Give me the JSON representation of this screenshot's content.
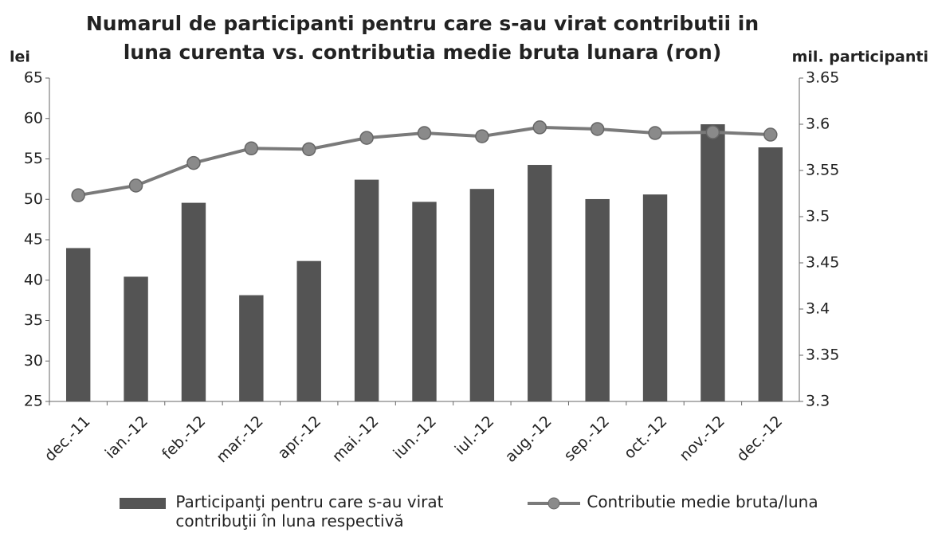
{
  "chart_data": {
    "type": "bar_line",
    "title": "Numarul de participanti pentru care s-au virat contributii in luna curenta vs. contributia medie bruta lunara (ron)",
    "ylabel": "lei",
    "y2label": "mil. participanti",
    "categories": [
      "dec.-11",
      "ian.-12",
      "feb.-12",
      "mar.-12",
      "apr.-12",
      "mai.-12",
      "iun.-12",
      "iul.-12",
      "aug.-12",
      "sep.-12",
      "oct.-12",
      "nov.-12",
      "dec.-12"
    ],
    "series": [
      {
        "name": "Participanţi pentru care s-au virat contribuţii în luna respectivă",
        "type": "bar",
        "axis": "y2",
        "color": "#545454",
        "values": [
          3.466,
          3.435,
          3.515,
          3.415,
          3.452,
          3.54,
          3.516,
          3.53,
          3.556,
          3.519,
          3.524,
          3.6,
          3.575
        ]
      },
      {
        "name": "Contributie medie bruta/luna",
        "type": "line",
        "axis": "y",
        "color": "#7a7a7a",
        "values": [
          50.5,
          51.7,
          54.5,
          56.3,
          56.2,
          57.6,
          58.2,
          57.8,
          58.9,
          58.7,
          58.2,
          58.3,
          58.0
        ]
      }
    ],
    "ylim": [
      25,
      65
    ],
    "yticks": [
      25,
      30,
      35,
      40,
      45,
      50,
      55,
      60,
      65
    ],
    "y2lim": [
      3.3,
      3.65
    ],
    "y2ticks": [
      3.3,
      3.35,
      3.4,
      3.45,
      3.5,
      3.55,
      3.6,
      3.65
    ],
    "grid": false,
    "legend": "bottom"
  }
}
